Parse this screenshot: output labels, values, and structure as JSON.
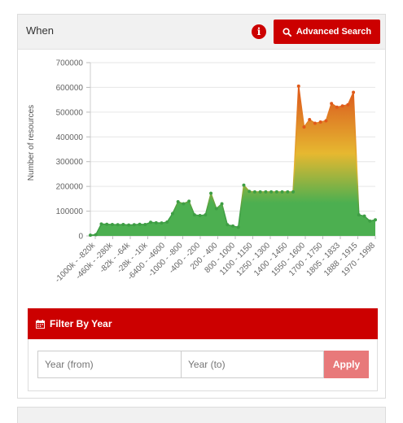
{
  "panel": {
    "title": "When",
    "info_icon_glyph": "i",
    "advanced_search_label": "Advanced Search"
  },
  "chart_data": {
    "type": "area",
    "ylabel": "Number of resources",
    "xlabel": "",
    "ylim": [
      0,
      700000
    ],
    "yticks": [
      0,
      100000,
      200000,
      300000,
      400000,
      500000,
      600000,
      700000
    ],
    "ytick_labels": [
      "0",
      "100000",
      "200000",
      "300000",
      "400000",
      "500000",
      "600000",
      "700000"
    ],
    "x_tick_labels": [
      "-1000k - -820k",
      "-460k - -280k",
      "-82k - -64k",
      "-28k - -10k",
      "-6400 - -4600",
      "-1000 - -800",
      "-400 - -200",
      "200 - 400",
      "800 - 1000",
      "1100 - 1150",
      "1250 - 1300",
      "1400 - 1450",
      "1550 - 1600",
      "1700 - 1750",
      "1805 - 1833",
      "1888 - 1915",
      "1970 - 1998"
    ],
    "colors": {
      "low": "#4caf50",
      "mid": "#e6b830",
      "high": "#d9531e",
      "line_low": "#3e9e44",
      "line_high": "#e05a1a"
    },
    "values": [
      3000,
      5000,
      48000,
      47000,
      46000,
      45000,
      46000,
      44000,
      45000,
      47000,
      46000,
      55000,
      53000,
      52000,
      56000,
      90000,
      138000,
      130000,
      140000,
      85000,
      82000,
      85000,
      172000,
      110000,
      130000,
      45000,
      40000,
      35000,
      205000,
      180000,
      178000,
      178000,
      178000,
      178000,
      178000,
      178000,
      178000,
      178000,
      605000,
      440000,
      470000,
      455000,
      460000,
      465000,
      535000,
      520000,
      525000,
      530000,
      580000,
      85000,
      80000,
      60000,
      65000
    ]
  },
  "filter": {
    "header_label": "Filter By Year",
    "from_placeholder": "Year (from)",
    "to_placeholder": "Year (to)",
    "apply_label": "Apply"
  }
}
